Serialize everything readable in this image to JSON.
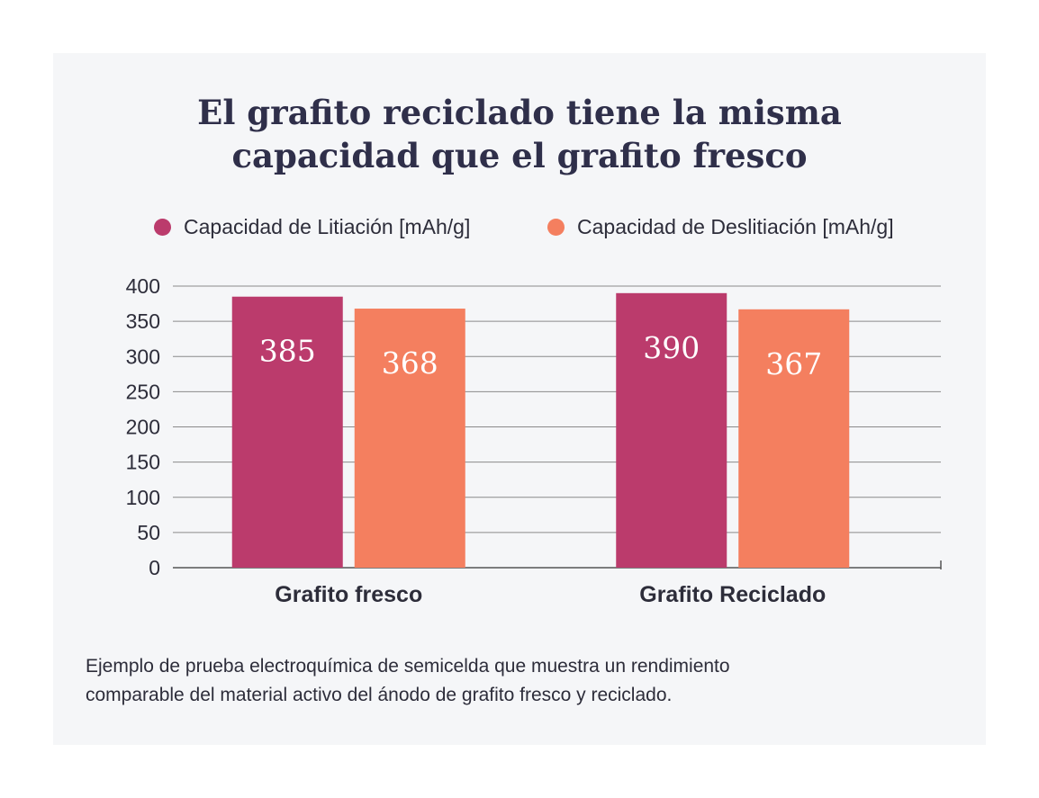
{
  "title_line1": "El grafito reciclado tiene la misma",
  "title_line2": "capacidad que el grafito fresco",
  "caption_line1": "Ejemplo de prueba electroquímica de semicelda que muestra un rendimiento",
  "caption_line2": "comparable del material activo del ánodo de grafito fresco y reciclado.",
  "colors": {
    "background": "#f5f6f8",
    "series_litiacion": "#bb3b6c",
    "series_deslitiacion": "#f47f5f",
    "grid": "#8a8a8a",
    "text": "#2d2d3a"
  },
  "chart_data": {
    "type": "bar",
    "title": "El grafito reciclado tiene la misma capacidad que el grafito fresco",
    "categories": [
      "Grafito fresco",
      "Grafito Reciclado"
    ],
    "series": [
      {
        "name": "Capacidad de Litiación [mAh/g]",
        "values": [
          385,
          390
        ]
      },
      {
        "name": "Capacidad de Deslitiación [mAh/g]",
        "values": [
          368,
          367
        ]
      }
    ],
    "ylim": [
      0,
      400
    ],
    "yticks": [
      0,
      50,
      100,
      150,
      200,
      250,
      300,
      350,
      400
    ],
    "grid": true,
    "legend_position": "top",
    "data_labels": true
  }
}
